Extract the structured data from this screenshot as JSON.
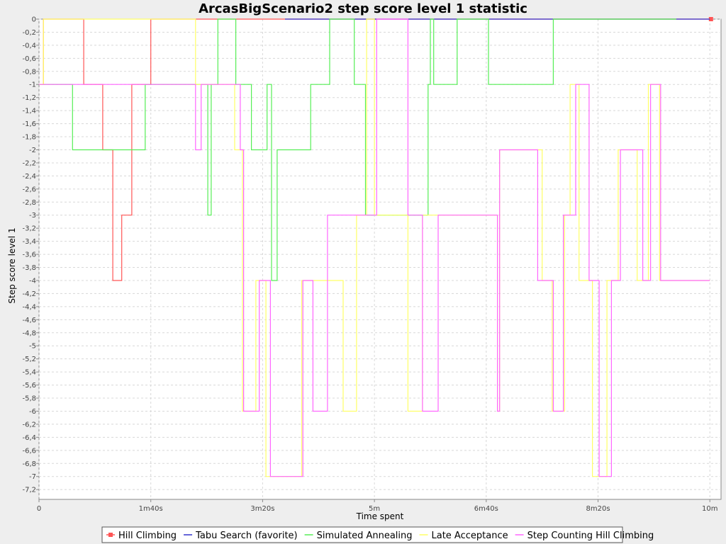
{
  "chart_data": {
    "type": "line",
    "title": "ArcasBigScenario2 step score level 1 statistic",
    "xlabel": "Time spent",
    "ylabel": "Step score level 1",
    "xlim": [
      0,
      610
    ],
    "ylim": [
      -7.35,
      0
    ],
    "grid": true,
    "legend_position": "bottom",
    "x_ticks": [
      {
        "value": 0,
        "label": "0"
      },
      {
        "value": 100,
        "label": "1m40s"
      },
      {
        "value": 200,
        "label": "3m20s"
      },
      {
        "value": 300,
        "label": "5m"
      },
      {
        "value": 400,
        "label": "6m40s"
      },
      {
        "value": 500,
        "label": "8m20s"
      },
      {
        "value": 600,
        "label": "10m"
      }
    ],
    "y_ticks": [
      {
        "value": 0,
        "label": "0"
      },
      {
        "value": -0.2,
        "label": "-0,2"
      },
      {
        "value": -0.4,
        "label": "-0,4"
      },
      {
        "value": -0.6,
        "label": "-0,6"
      },
      {
        "value": -0.8,
        "label": "-0,8"
      },
      {
        "value": -1,
        "label": "-1"
      },
      {
        "value": -1.2,
        "label": "-1,2"
      },
      {
        "value": -1.4,
        "label": "-1,4"
      },
      {
        "value": -1.6,
        "label": "-1,6"
      },
      {
        "value": -1.8,
        "label": "-1,8"
      },
      {
        "value": -2,
        "label": "-2"
      },
      {
        "value": -2.2,
        "label": "-2,2"
      },
      {
        "value": -2.4,
        "label": "-2,4"
      },
      {
        "value": -2.6,
        "label": "-2,6"
      },
      {
        "value": -2.8,
        "label": "-2,8"
      },
      {
        "value": -3,
        "label": "-3"
      },
      {
        "value": -3.2,
        "label": "-3,2"
      },
      {
        "value": -3.4,
        "label": "-3,4"
      },
      {
        "value": -3.6,
        "label": "-3,6"
      },
      {
        "value": -3.8,
        "label": "-3,8"
      },
      {
        "value": -4,
        "label": "-4"
      },
      {
        "value": -4.2,
        "label": "-4,2"
      },
      {
        "value": -4.4,
        "label": "-4,4"
      },
      {
        "value": -4.6,
        "label": "-4,6"
      },
      {
        "value": -4.8,
        "label": "-4,8"
      },
      {
        "value": -5,
        "label": "-5"
      },
      {
        "value": -5.2,
        "label": "-5,2"
      },
      {
        "value": -5.4,
        "label": "-5,4"
      },
      {
        "value": -5.6,
        "label": "-5,6"
      },
      {
        "value": -5.8,
        "label": "-5,8"
      },
      {
        "value": -6,
        "label": "-6"
      },
      {
        "value": -6.2,
        "label": "-6,2"
      },
      {
        "value": -6.4,
        "label": "-6,4"
      },
      {
        "value": -6.6,
        "label": "-6,6"
      },
      {
        "value": -6.8,
        "label": "-6,8"
      },
      {
        "value": -7,
        "label": "-7"
      },
      {
        "value": -7.2,
        "label": "-7,2"
      }
    ],
    "series": [
      {
        "name": "Hill Climbing",
        "color": "#ff5555",
        "marker": "square",
        "step": true,
        "x": [
          0,
          4,
          4,
          40,
          40,
          57,
          57,
          66,
          66,
          74,
          74,
          83,
          83,
          100,
          100,
          600,
          600,
          601
        ],
        "y": [
          -1,
          -1,
          0,
          0,
          -1,
          -1,
          -2,
          -2,
          -4,
          -4,
          -3,
          -3,
          -1,
          -1,
          0,
          0,
          0,
          0
        ]
      },
      {
        "name": "Tabu Search (favorite)",
        "color": "#3333cc",
        "step": true,
        "x": [
          220,
          600
        ],
        "y": [
          0,
          0
        ]
      },
      {
        "name": "Simulated Annealing",
        "color": "#55ee55",
        "step": true,
        "x": [
          0,
          30,
          30,
          95,
          95,
          142,
          142,
          151,
          151,
          154,
          154,
          160,
          160,
          176,
          176,
          190,
          190,
          204,
          204,
          208,
          208,
          213,
          213,
          243,
          243,
          260,
          260,
          282,
          282,
          292,
          292,
          348,
          348,
          350,
          350,
          353,
          353,
          374,
          374,
          402,
          402,
          460,
          460,
          570
        ],
        "y": [
          -1,
          -1,
          -2,
          -2,
          -1,
          -1,
          -1,
          -1,
          -3,
          -3,
          -1,
          -1,
          0,
          0,
          -1,
          -1,
          -2,
          -2,
          -1,
          -1,
          -4,
          -4,
          -2,
          -2,
          -1,
          -1,
          0,
          0,
          -1,
          -1,
          -3,
          -3,
          -1,
          -1,
          0,
          0,
          -1,
          -1,
          0,
          0,
          -1,
          -1,
          0,
          0
        ]
      },
      {
        "name": "Late Acceptance",
        "color": "#ffff66",
        "step": true,
        "x": [
          0,
          4,
          4,
          140,
          140,
          175,
          175,
          182,
          182,
          194,
          194,
          203,
          203,
          235,
          235,
          272,
          272,
          284,
          284,
          293,
          293,
          300,
          300,
          330,
          330,
          343,
          343,
          410,
          410,
          412,
          412,
          450,
          450,
          459,
          459,
          470,
          470,
          475,
          475,
          483,
          483,
          495,
          495,
          508,
          508,
          518,
          518,
          535,
          535,
          545,
          545,
          555,
          555,
          600
        ],
        "y": [
          -1,
          -1,
          0,
          0,
          -1,
          -1,
          -2,
          -2,
          -6,
          -6,
          -4,
          -4,
          -7,
          -7,
          -4,
          -4,
          -6,
          -6,
          -3,
          -3,
          0,
          0,
          -3,
          -3,
          -6,
          -6,
          -3,
          -3,
          -6,
          -6,
          -2,
          -2,
          -4,
          -4,
          -6,
          -6,
          -3,
          -3,
          -1,
          -1,
          -4,
          -4,
          -7,
          -7,
          -4,
          -4,
          -2,
          -2,
          -4,
          -4,
          -1,
          -1,
          -4,
          -4
        ]
      },
      {
        "name": "Step Counting Hill Climbing",
        "color": "#ff66ff",
        "step": true,
        "x": [
          0,
          140,
          140,
          145,
          145,
          180,
          180,
          183,
          183,
          197,
          197,
          207,
          207,
          236,
          236,
          245,
          245,
          258,
          258,
          302,
          302,
          330,
          330,
          343,
          343,
          357,
          357,
          410,
          410,
          412,
          412,
          446,
          446,
          460,
          460,
          469,
          469,
          480,
          480,
          492,
          492,
          501,
          501,
          512,
          512,
          520,
          520,
          540,
          540,
          547,
          547,
          556,
          556,
          600
        ],
        "y": [
          -1,
          -1,
          -2,
          -2,
          -1,
          -1,
          -2,
          -2,
          -6,
          -6,
          -4,
          -4,
          -7,
          -7,
          -4,
          -4,
          -6,
          -6,
          -3,
          -3,
          0,
          0,
          -3,
          -3,
          -6,
          -6,
          -3,
          -3,
          -6,
          -6,
          -2,
          -2,
          -4,
          -4,
          -6,
          -6,
          -3,
          -3,
          -1,
          -1,
          -4,
          -4,
          -7,
          -7,
          -4,
          -4,
          -2,
          -2,
          -4,
          -4,
          -1,
          -1,
          -4,
          -4
        ]
      }
    ]
  }
}
